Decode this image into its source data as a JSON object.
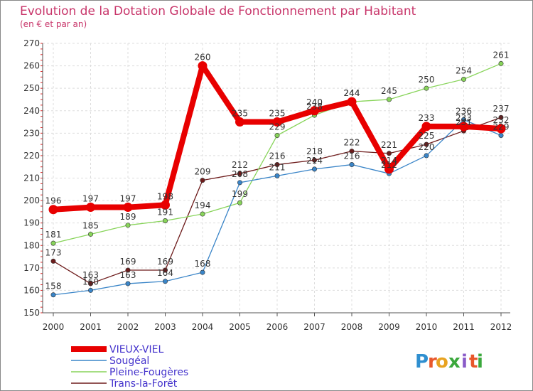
{
  "chart_data": {
    "type": "line",
    "title": "Evolution de la Dotation Globale de Fonctionnement par Habitant",
    "subtitle": "(en € et par an)",
    "x": [
      "2000",
      "2001",
      "2002",
      "2003",
      "2004",
      "2005",
      "2006",
      "2007",
      "2008",
      "2009",
      "2010",
      "2011",
      "2012"
    ],
    "yticks": [
      "150",
      "160",
      "170",
      "180",
      "190",
      "200",
      "210",
      "220",
      "230",
      "240",
      "250",
      "260",
      "270"
    ],
    "ylim": [
      150,
      270
    ],
    "series": [
      {
        "name": "Trans-la-Forêt",
        "color": "#6e1c1c",
        "values": [
          173,
          163,
          169,
          169,
          209,
          212,
          216,
          218,
          222,
          221,
          225,
          231,
          237
        ],
        "labels": [
          "173",
          "163",
          "169",
          "169",
          "209",
          "212",
          "216",
          "218",
          "222",
          "221",
          "225",
          "231",
          "237"
        ]
      },
      {
        "name": "Pleine-Fougères",
        "color": "#88d45a",
        "values": [
          181,
          185,
          189,
          191,
          194,
          199,
          229,
          238,
          244,
          245,
          250,
          254,
          261
        ],
        "labels": [
          "181",
          "185",
          "189",
          "191",
          "194",
          "199",
          "229",
          "238",
          "244",
          "245",
          "250",
          "254",
          "261"
        ]
      },
      {
        "name": "Sougéal",
        "color": "#3a85c8",
        "values": [
          158,
          160,
          163,
          164,
          168,
          208,
          211,
          214,
          216,
          212,
          220,
          236,
          229
        ],
        "labels": [
          "158",
          "160",
          "163",
          "164",
          "168",
          "208",
          "211",
          "214",
          "216",
          "212",
          "220",
          "236",
          "229"
        ]
      },
      {
        "name": "VIEUX-VIEL",
        "color": "#e80000",
        "values": [
          196,
          197,
          197,
          198,
          260,
          235,
          235,
          240,
          244,
          214,
          233,
          233,
          232
        ],
        "labels": [
          "196",
          "197",
          "197",
          "198",
          "260",
          "235",
          "235",
          "240",
          "244",
          "214",
          "233",
          "233",
          "232"
        ]
      }
    ],
    "legend": [
      "VIEUX-VIEL",
      "Sougéal",
      "Pleine-Fougères",
      "Trans-la-Forêt"
    ],
    "legend_position": "bottom-left",
    "grid": true
  },
  "brand": {
    "text": "Proxiti",
    "letters": [
      "P",
      "r",
      "o",
      "x",
      "i",
      "t",
      "i"
    ],
    "colors": [
      "#2f8fd0",
      "#e8572b",
      "#e8a320",
      "#3aa83c",
      "#8a5bc8",
      "#e8572b",
      "#3aa83c"
    ]
  }
}
